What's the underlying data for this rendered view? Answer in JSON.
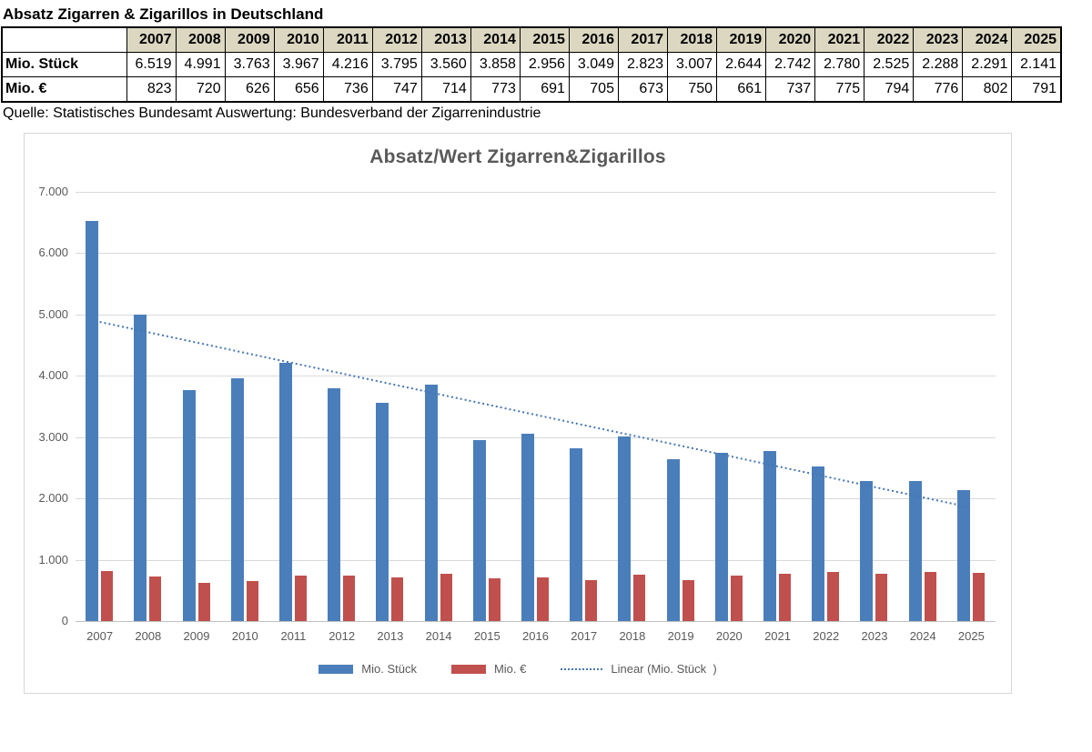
{
  "page": {
    "title": "Absatz Zigarren & Zigarillos in Deutschland",
    "source_line": "Quelle: Statistisches Bundesamt    Auswertung: Bundesverband der Zigarrenindustrie"
  },
  "table": {
    "corner_label": "",
    "years": [
      "2007",
      "2008",
      "2009",
      "2010",
      "2011",
      "2012",
      "2013",
      "2014",
      "2015",
      "2016",
      "2017",
      "2018",
      "2019",
      "2020",
      "2021",
      "2022",
      "2023",
      "2024",
      "2025"
    ],
    "rows": [
      {
        "label": "Mio. Stück",
        "values": [
          "6.519",
          "4.991",
          "3.763",
          "3.967",
          "4.216",
          "3.795",
          "3.560",
          "3.858",
          "2.956",
          "3.049",
          "2.823",
          "3.007",
          "2.644",
          "2.742",
          "2.780",
          "2.525",
          "2.288",
          "2.291",
          "2.141"
        ]
      },
      {
        "label": "Mio. €",
        "values": [
          "823",
          "720",
          "626",
          "656",
          "736",
          "747",
          "714",
          "773",
          "691",
          "705",
          "673",
          "750",
          "661",
          "737",
          "775",
          "794",
          "776",
          "802",
          "791"
        ]
      }
    ]
  },
  "chart_data": {
    "type": "bar",
    "title": "Absatz/Wert Zigarren&Zigarillos",
    "categories": [
      "2007",
      "2008",
      "2009",
      "2010",
      "2011",
      "2012",
      "2013",
      "2014",
      "2015",
      "2016",
      "2017",
      "2018",
      "2019",
      "2020",
      "2021",
      "2022",
      "2023",
      "2024",
      "2025"
    ],
    "series": [
      {
        "name": "Mio. Stück",
        "color": "#4a7ebb",
        "values": [
          6519,
          4991,
          3763,
          3967,
          4216,
          3795,
          3560,
          3858,
          2956,
          3049,
          2823,
          3007,
          2644,
          2742,
          2780,
          2525,
          2288,
          2291,
          2141
        ]
      },
      {
        "name": "Mio. €",
        "color": "#c0504d",
        "values": [
          823,
          720,
          626,
          656,
          736,
          747,
          714,
          773,
          691,
          705,
          673,
          750,
          661,
          737,
          775,
          794,
          776,
          802,
          791
        ]
      }
    ],
    "trendline": {
      "label": "Linear (Mio. Stück  )",
      "color": "#4576b4",
      "style": "dotted",
      "start_value": 4879,
      "end_value": 1849
    },
    "xlabel": "",
    "ylabel": "",
    "ylim": [
      0,
      7000
    ],
    "ytick_step": 1000,
    "ytick_labels": [
      "0",
      "1.000",
      "2.000",
      "3.000",
      "4.000",
      "5.000",
      "6.000",
      "7.000"
    ],
    "grid": true,
    "legend_position": "bottom"
  }
}
